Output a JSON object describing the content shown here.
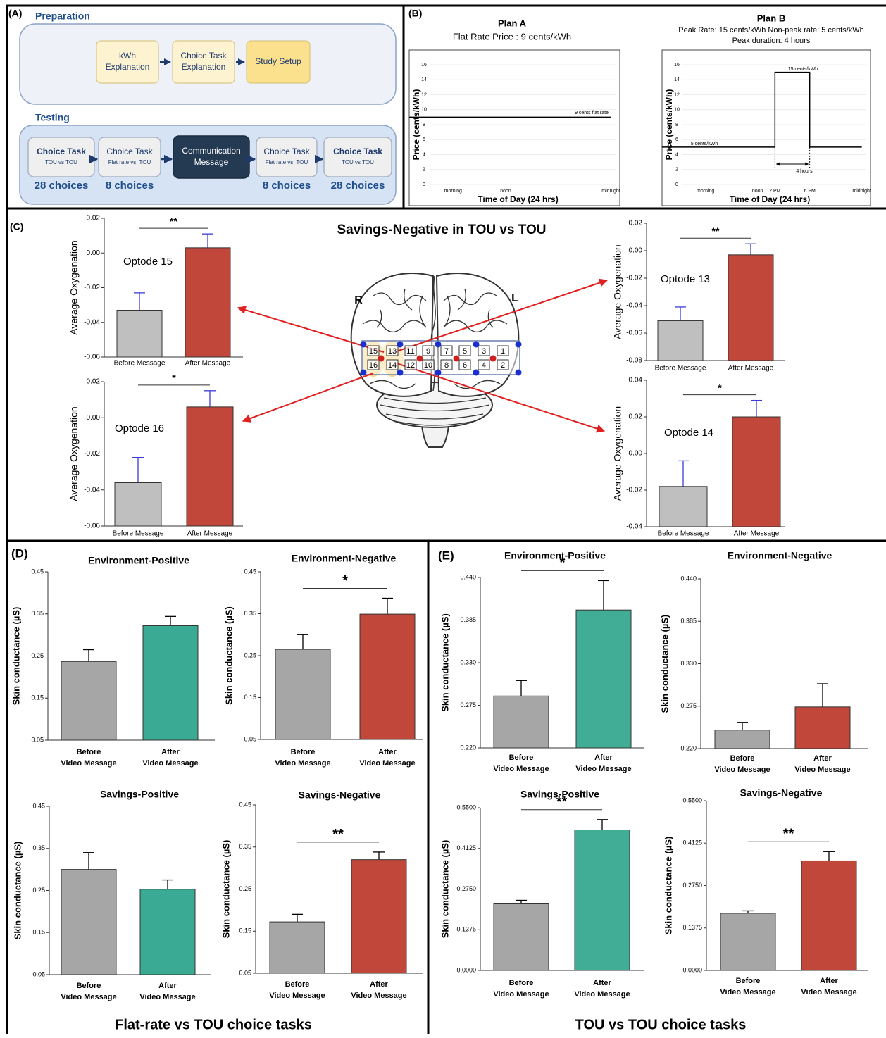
{
  "diagram": {
    "panel_a": {
      "label": "(A)",
      "preparation": {
        "title": "Preparation",
        "steps": [
          [
            "kWh",
            "Explanation"
          ],
          [
            "Choice Task",
            "Explanation"
          ],
          [
            "Study Setup"
          ]
        ]
      },
      "testing": {
        "title": "Testing",
        "steps": [
          {
            "name": [
              "Choice Task"
            ],
            "detail": "TOU vs TOU",
            "count": "28 choices"
          },
          {
            "name": [
              "Choice Task"
            ],
            "detail": "Flat rate vs. TOU",
            "count": "8 choices"
          },
          {
            "name": [
              "Communication",
              "Message"
            ]
          },
          {
            "name": [
              "Choice Task"
            ],
            "detail": "Flat rate vs. TOU",
            "count": "8 choices"
          },
          {
            "name": [
              "Choice Task"
            ],
            "detail": "TOU vs TOU",
            "count": "28 choices"
          }
        ]
      }
    },
    "panel_b": {
      "label": "(B)"
    },
    "panel_c": {
      "label": "(C)",
      "title": "Savings-Negative in TOU vs TOU",
      "brain": {
        "left": "R",
        "right": "L",
        "optodes_top": [
          "15",
          "13",
          "11",
          "9",
          "7",
          "5",
          "3",
          "1"
        ],
        "optodes_bottom": [
          "16",
          "14",
          "12",
          "10",
          "8",
          "6",
          "4",
          "2"
        ]
      }
    },
    "panel_d": {
      "label": "(D)",
      "caption": "Flat-rate vs TOU choice tasks"
    },
    "panel_e": {
      "label": "(E)",
      "caption": "TOU vs TOU choice tasks"
    }
  },
  "chart_data": [
    {
      "type": "line",
      "title": "Plan A",
      "subtitle": [
        "Flat Rate Price : 9 cents/kWh"
      ],
      "x_label": "Time of Day (24 hrs)",
      "y_label": "Price (cents/kWh)",
      "x": [
        1,
        24
      ],
      "values": [
        9,
        9
      ],
      "color": "#000000",
      "xlim": [
        1,
        25
      ],
      "xticks": [
        {
          "value": 6,
          "label": "morning"
        },
        {
          "value": 12,
          "label": "noon"
        },
        {
          "value": 24,
          "label": "midnight"
        }
      ],
      "ylim": [
        0,
        16
      ],
      "yticks": [
        0,
        2,
        4,
        6,
        8,
        10,
        12,
        14,
        16
      ],
      "grid": true,
      "annotations": [
        "9 cents flat rate"
      ]
    },
    {
      "type": "line",
      "title": "Plan B",
      "subtitle": [
        "Peak Rate: 15 cents/kWh   Non-peak rate: 5 cents/kWh",
        "Peak duration: 4 hours"
      ],
      "x_label": "Time of Day (24 hrs)",
      "y_label": "Price (cents/kWh)",
      "x": [
        1,
        14,
        14,
        18,
        18,
        24
      ],
      "values": [
        5,
        5,
        15,
        15,
        5,
        5
      ],
      "color": "#000000",
      "xlim": [
        1,
        25
      ],
      "xticks": [
        {
          "value": 6,
          "label": "morning"
        },
        {
          "value": 12,
          "label": "noon"
        },
        {
          "value": 14,
          "label": "2 PM"
        },
        {
          "value": 18,
          "label": "6 PM"
        },
        {
          "value": 24,
          "label": "midnight"
        }
      ],
      "ylim": [
        0,
        16
      ],
      "yticks": [
        0,
        2,
        4,
        6,
        8,
        10,
        12,
        14,
        16
      ],
      "grid": true,
      "annotations": [
        "15 cents/kWh",
        "5 cents/kWh",
        "4 hours"
      ]
    },
    {
      "type": "bar",
      "label": "Optode 15",
      "y_label": "Average Oxygenation",
      "categories": [
        "Before Message",
        "After Message"
      ],
      "values": [
        -0.033,
        0.003
      ],
      "errors": [
        0.01,
        0.008
      ],
      "colors": [
        "#bfbfbf",
        "#c0473a"
      ],
      "error_color": "#3b3bd9",
      "ylim": [
        -0.06,
        0.02
      ],
      "yticks": [
        -0.06,
        -0.04,
        -0.02,
        {
          "value": 0,
          "label": "0.00"
        },
        0.02
      ],
      "significance": "**"
    },
    {
      "type": "bar",
      "label": "Optode 16",
      "y_label": "Average Oxygenation",
      "categories": [
        "Before Message",
        "After Message"
      ],
      "values": [
        -0.036,
        0.006
      ],
      "errors": [
        0.014,
        0.009
      ],
      "colors": [
        "#bfbfbf",
        "#c0473a"
      ],
      "error_color": "#3b3bd9",
      "ylim": [
        -0.06,
        0.02
      ],
      "yticks": [
        -0.06,
        -0.04,
        -0.02,
        {
          "value": 0,
          "label": "0.00"
        },
        0.02
      ],
      "significance": "*"
    },
    {
      "type": "bar",
      "label": "Optode 13",
      "y_label": "Average Oxygenation",
      "categories": [
        "Before Message",
        "After Message"
      ],
      "values": [
        -0.051,
        -0.003
      ],
      "errors": [
        0.01,
        0.008
      ],
      "colors": [
        "#bfbfbf",
        "#c0473a"
      ],
      "error_color": "#3b3bd9",
      "ylim": [
        -0.08,
        0.02
      ],
      "yticks": [
        -0.08,
        -0.06,
        -0.04,
        -0.02,
        {
          "value": 0,
          "label": "0.00"
        },
        0.02
      ],
      "significance": "**"
    },
    {
      "type": "bar",
      "label": "Optode 14",
      "y_label": "Average Oxygenation",
      "categories": [
        "Before Message",
        "After Message"
      ],
      "values": [
        -0.018,
        0.02
      ],
      "errors": [
        0.014,
        0.009
      ],
      "colors": [
        "#bfbfbf",
        "#c0473a"
      ],
      "error_color": "#3b3bd9",
      "ylim": [
        -0.04,
        0.04
      ],
      "yticks": [
        -0.04,
        -0.02,
        {
          "value": 0,
          "label": "0.00"
        },
        0.02,
        0.04
      ],
      "significance": "*"
    },
    {
      "type": "bar",
      "title": "Environment-Positive",
      "y_label": "Skin conductance (µS)",
      "categories": [
        [
          "Before",
          "Video Message"
        ],
        [
          "After",
          "Video Message"
        ]
      ],
      "values": [
        0.237,
        0.322
      ],
      "errors": [
        0.028,
        0.022
      ],
      "colors": [
        "#a6a6a6",
        "#3aaa94"
      ],
      "error_color": "#000000",
      "ylim": [
        0.05,
        0.45
      ],
      "yticks": [
        0.05,
        0.15,
        0.25,
        0.35,
        0.45
      ]
    },
    {
      "type": "bar",
      "title": "Environment-Negative",
      "y_label": "Skin conductance (µS)",
      "categories": [
        [
          "Before",
          "Video Message"
        ],
        [
          "After",
          "Video Message"
        ]
      ],
      "values": [
        0.265,
        0.349
      ],
      "errors": [
        0.035,
        0.038
      ],
      "colors": [
        "#a6a6a6",
        "#c0473a"
      ],
      "error_color": "#000000",
      "ylim": [
        0.05,
        0.45
      ],
      "yticks": [
        0.05,
        0.15,
        0.25,
        0.35,
        0.45
      ],
      "significance": "*"
    },
    {
      "type": "bar",
      "title": "Savings-Positive",
      "y_label": "Skin conductance (µS)",
      "categories": [
        [
          "Before",
          "Video Message"
        ],
        [
          "After",
          "Video Message"
        ]
      ],
      "values": [
        0.3,
        0.253
      ],
      "errors": [
        0.04,
        0.022
      ],
      "colors": [
        "#a6a6a6",
        "#3aaa94"
      ],
      "error_color": "#000000",
      "ylim": [
        0.05,
        0.45
      ],
      "yticks": [
        0.05,
        0.15,
        0.25,
        0.35,
        0.45
      ]
    },
    {
      "type": "bar",
      "title": "Savings-Negative",
      "y_label": "Skin conductance (µS)",
      "categories": [
        [
          "Before",
          "Video Message"
        ],
        [
          "After",
          "Video Message"
        ]
      ],
      "values": [
        0.172,
        0.32
      ],
      "errors": [
        0.018,
        0.018
      ],
      "colors": [
        "#a6a6a6",
        "#c0473a"
      ],
      "error_color": "#000000",
      "ylim": [
        0.05,
        0.45
      ],
      "yticks": [
        0.05,
        0.15,
        0.25,
        0.35,
        0.45
      ],
      "significance": "**"
    },
    {
      "type": "bar",
      "title": "Environment-Positive",
      "y_label": "Skin conductance (µS)",
      "categories": [
        [
          "Before",
          "Video Message"
        ],
        [
          "After",
          "Video Message"
        ]
      ],
      "values": [
        0.287,
        0.398
      ],
      "errors": [
        0.02,
        0.038
      ],
      "colors": [
        "#a6a6a6",
        "#41ad96"
      ],
      "error_color": "#000000",
      "ylim": [
        0.22,
        0.44
      ],
      "yticks": [
        {
          "value": 0.22,
          "label": "0.220"
        },
        0.275,
        {
          "value": 0.33,
          "label": "0.330"
        },
        0.385,
        {
          "value": 0.44,
          "label": "0.440"
        }
      ],
      "significance": "*"
    },
    {
      "type": "bar",
      "title": "Environment-Negative",
      "y_label": "Skin conductance (µS)",
      "categories": [
        [
          "Before",
          "Video Message"
        ],
        [
          "After",
          "Video Message"
        ]
      ],
      "values": [
        0.244,
        0.274
      ],
      "errors": [
        0.01,
        0.03
      ],
      "colors": [
        "#a6a6a6",
        "#c0473a"
      ],
      "error_color": "#000000",
      "ylim": [
        0.22,
        0.44
      ],
      "yticks": [
        {
          "value": 0.22,
          "label": "0.220"
        },
        0.275,
        {
          "value": 0.33,
          "label": "0.330"
        },
        0.385,
        {
          "value": 0.44,
          "label": "0.440"
        }
      ]
    },
    {
      "type": "bar",
      "title": "Savings-Positive",
      "y_label": "Skin conductance (µS)",
      "categories": [
        [
          "Before",
          "Video Message"
        ],
        [
          "After",
          "Video Message"
        ]
      ],
      "values": [
        0.225,
        0.475
      ],
      "errors": [
        0.012,
        0.035
      ],
      "colors": [
        "#a6a6a6",
        "#41ad96"
      ],
      "error_color": "#000000",
      "ylim": [
        0,
        0.55
      ],
      "yticks": [
        {
          "value": 0,
          "label": "0.0000"
        },
        0.1375,
        {
          "value": 0.275,
          "label": "0.2750"
        },
        0.4125,
        {
          "value": 0.55,
          "label": "0.5500"
        }
      ],
      "significance": "**"
    },
    {
      "type": "bar",
      "title": "Savings-Negative",
      "y_label": "Skin conductance (µS)",
      "categories": [
        [
          "Before",
          "Video Message"
        ],
        [
          "After",
          "Video Message"
        ]
      ],
      "values": [
        0.185,
        0.355
      ],
      "errors": [
        0.008,
        0.03
      ],
      "colors": [
        "#a6a6a6",
        "#c0473a"
      ],
      "error_color": "#000000",
      "ylim": [
        0,
        0.55
      ],
      "yticks": [
        {
          "value": 0,
          "label": "0.0000"
        },
        0.1375,
        {
          "value": 0.275,
          "label": "0.2750"
        },
        0.4125,
        {
          "value": 0.55,
          "label": "0.5500"
        }
      ],
      "significance": "**"
    }
  ]
}
